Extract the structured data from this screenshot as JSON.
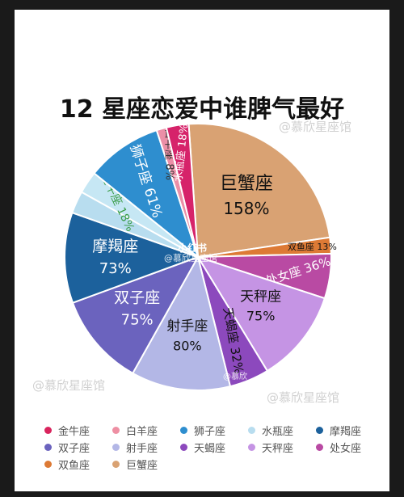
{
  "watermarks": {
    "top_right": "@慕欣星座馆",
    "bottom_left": "@慕欣星座馆",
    "bottom_right": "@慕欣星座馆",
    "center_brand": "小红书",
    "center_handle": "@慕欣星座馆",
    "slice_handle": "@慕欣"
  },
  "chart_data": {
    "type": "pie",
    "title": "12 星座恋爱中谁脾气最好",
    "legend_position": "bottom",
    "slices": [
      {
        "name": "巨蟹座",
        "label": "巨蟹座",
        "value": 158,
        "value_label": "158%",
        "color": "#d9a273"
      },
      {
        "name": "双鱼座",
        "label": "双鱼座",
        "value": 13,
        "value_label": "13%",
        "color": "#dd7a35"
      },
      {
        "name": "处女座",
        "label": "处女座",
        "value": 36,
        "value_label": "36%",
        "color": "#b94aa3"
      },
      {
        "name": "天秤座",
        "label": "天秤座",
        "value": 75,
        "value_label": "75%",
        "color": "#c594e4"
      },
      {
        "name": "天蝎座",
        "label": "天蝎座",
        "value": 32,
        "value_label": "32%",
        "color": "#8c49bd"
      },
      {
        "name": "射手座",
        "label": "射手座",
        "value": 80,
        "value_label": "80%",
        "color": "#b3b7e6"
      },
      {
        "name": "双子座",
        "label": "双子座",
        "value": 75,
        "value_label": "75%",
        "color": "#6b63be"
      },
      {
        "name": "摩羯座",
        "label": "摩羯座",
        "value": 73,
        "value_label": "73%",
        "color": "#1c619c"
      },
      {
        "name": "水瓶座",
        "label": "",
        "value": 18,
        "value_label": "",
        "color": "#b8ddef"
      },
      {
        "name": "金牛座",
        "label": "金牛座",
        "value": 18,
        "value_label": "18%",
        "color": "#c6e7f4"
      },
      {
        "name": "狮子座",
        "label": "狮子座",
        "value": 61,
        "value_label": "61%",
        "color": "#2e8ecf"
      },
      {
        "name": "白羊座",
        "label": "白羊座",
        "value": 8,
        "value_label": "8%",
        "color": "#eb8fa7"
      },
      {
        "name": "水瓶座",
        "label": "水瓶座",
        "value": 18,
        "value_label": "18%",
        "color": "#d6236a"
      }
    ],
    "legend": [
      {
        "label": "金牛座",
        "color": "#d9245d"
      },
      {
        "label": "白羊座",
        "color": "#ee8fa3"
      },
      {
        "label": "狮子座",
        "color": "#2e8ecf"
      },
      {
        "label": "水瓶座",
        "color": "#b8ddef"
      },
      {
        "label": "摩羯座",
        "color": "#1c619c"
      },
      {
        "label": "双子座",
        "color": "#6b63be"
      },
      {
        "label": "射手座",
        "color": "#b3b7e6"
      },
      {
        "label": "天蝎座",
        "color": "#8c49bd"
      },
      {
        "label": "天秤座",
        "color": "#c594e4"
      },
      {
        "label": "处女座",
        "color": "#b94aa3"
      },
      {
        "label": "双鱼座",
        "color": "#dd7a35"
      },
      {
        "label": "巨蟹座",
        "color": "#d9a273"
      }
    ]
  }
}
